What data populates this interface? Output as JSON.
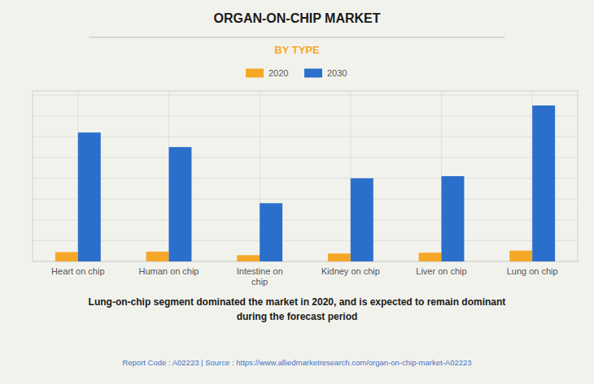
{
  "chart_data": {
    "type": "bar",
    "title": "ORGAN-ON-CHIP MARKET",
    "subtitle": "BY TYPE",
    "categories": [
      "Heart on chip",
      "Human on chip",
      "Intestine on\nchip",
      "Kidney on chip",
      "Liver on chip",
      "Lung on chip"
    ],
    "series": [
      {
        "name": "2020",
        "color": "#F5A827",
        "values": [
          0.045,
          0.047,
          0.03,
          0.038,
          0.042,
          0.052
        ]
      },
      {
        "name": "2030",
        "color": "#2B6FCC",
        "values": [
          0.62,
          0.55,
          0.28,
          0.4,
          0.41,
          0.75
        ]
      }
    ],
    "ylim": [
      0,
      0.82
    ],
    "yticks": [
      0,
      0.1,
      0.2,
      0.3,
      0.4,
      0.5,
      0.6,
      0.7,
      0.8
    ],
    "grid": true,
    "tick_labels": "x",
    "legend": "top",
    "annotations": [
      "Lung-on-chip segment dominated the market in 2020, and is expected to remain dominant",
      "during the forecast period",
      "Report Code : A02223  |  Source : https://www.alliedmarketresearch.com/organ-on-chip-market-A02223"
    ]
  }
}
